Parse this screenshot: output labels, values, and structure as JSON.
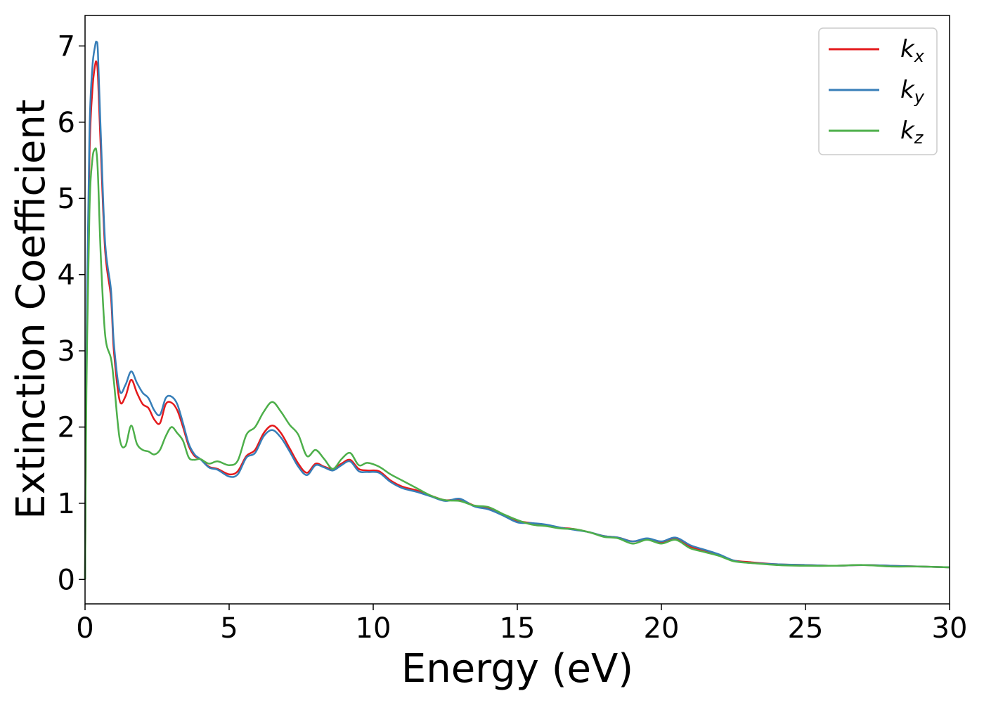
{
  "chart_data": {
    "type": "line",
    "xlabel": "Energy (eV)",
    "ylabel": "Extinction Coefficient",
    "xlim": [
      0,
      30
    ],
    "ylim": [
      -0.32,
      7.4
    ],
    "xticks": [
      "0",
      "5",
      "10",
      "15",
      "20",
      "25",
      "30"
    ],
    "yticks": [
      "0",
      "1",
      "2",
      "3",
      "4",
      "5",
      "6",
      "7"
    ],
    "grid": false,
    "legend": "top-right",
    "series": [
      {
        "name": "k",
        "sub": "x",
        "color": "#e41a1c",
        "x": [
          0,
          0.05,
          0.15,
          0.25,
          0.35,
          0.4,
          0.45,
          0.55,
          0.7,
          0.9,
          1.0,
          1.2,
          1.4,
          1.6,
          1.8,
          2.0,
          2.2,
          2.4,
          2.6,
          2.8,
          3.0,
          3.2,
          3.4,
          3.6,
          3.8,
          4.0,
          4.3,
          4.6,
          5.0,
          5.3,
          5.6,
          5.9,
          6.2,
          6.5,
          6.8,
          7.1,
          7.4,
          7.7,
          8.0,
          8.3,
          8.6,
          8.9,
          9.2,
          9.5,
          9.8,
          10.2,
          10.6,
          11.0,
          11.5,
          12.0,
          12.5,
          13.0,
          13.5,
          14.0,
          14.5,
          15.0,
          15.5,
          16.0,
          16.5,
          17.0,
          17.5,
          18.0,
          18.5,
          19.0,
          19.5,
          20.0,
          20.5,
          21.0,
          21.5,
          22.0,
          22.5,
          23.0,
          24.0,
          25.0,
          26.0,
          27.0,
          28.0,
          29.0,
          30.0
        ],
        "values": [
          0,
          2.8,
          5.5,
          6.4,
          6.75,
          6.78,
          6.6,
          5.6,
          4.3,
          3.7,
          3.0,
          2.35,
          2.4,
          2.62,
          2.45,
          2.3,
          2.25,
          2.1,
          2.05,
          2.3,
          2.32,
          2.22,
          2.0,
          1.75,
          1.62,
          1.58,
          1.48,
          1.45,
          1.38,
          1.42,
          1.62,
          1.7,
          1.92,
          2.02,
          1.92,
          1.72,
          1.52,
          1.4,
          1.52,
          1.48,
          1.45,
          1.52,
          1.57,
          1.45,
          1.43,
          1.42,
          1.3,
          1.22,
          1.17,
          1.1,
          1.04,
          1.05,
          0.97,
          0.93,
          0.85,
          0.77,
          0.74,
          0.71,
          0.68,
          0.66,
          0.62,
          0.57,
          0.55,
          0.5,
          0.53,
          0.49,
          0.53,
          0.43,
          0.38,
          0.32,
          0.25,
          0.23,
          0.2,
          0.19,
          0.18,
          0.19,
          0.18,
          0.17,
          0.16
        ]
      },
      {
        "name": "k",
        "sub": "y",
        "color": "#377eb8",
        "x": [
          0,
          0.05,
          0.15,
          0.25,
          0.35,
          0.4,
          0.45,
          0.55,
          0.7,
          0.9,
          1.0,
          1.2,
          1.4,
          1.6,
          1.8,
          2.0,
          2.2,
          2.4,
          2.6,
          2.8,
          3.0,
          3.2,
          3.4,
          3.6,
          3.8,
          4.0,
          4.3,
          4.6,
          5.0,
          5.3,
          5.6,
          5.9,
          6.2,
          6.5,
          6.8,
          7.1,
          7.4,
          7.7,
          8.0,
          8.3,
          8.6,
          8.9,
          9.2,
          9.5,
          9.8,
          10.2,
          10.6,
          11.0,
          11.5,
          12.0,
          12.5,
          13.0,
          13.5,
          14.0,
          14.5,
          15.0,
          15.5,
          16.0,
          16.5,
          17.0,
          17.5,
          18.0,
          18.5,
          19.0,
          19.5,
          20.0,
          20.5,
          21.0,
          21.5,
          22.0,
          22.5,
          23.0,
          24.0,
          25.0,
          26.0,
          27.0,
          28.0,
          29.0,
          30.0
        ],
        "values": [
          0,
          3.0,
          5.8,
          6.7,
          7.0,
          7.05,
          6.9,
          5.8,
          4.4,
          3.8,
          3.1,
          2.48,
          2.55,
          2.73,
          2.58,
          2.45,
          2.38,
          2.22,
          2.16,
          2.38,
          2.4,
          2.3,
          2.05,
          1.78,
          1.64,
          1.58,
          1.47,
          1.44,
          1.35,
          1.38,
          1.6,
          1.66,
          1.88,
          1.96,
          1.86,
          1.68,
          1.48,
          1.37,
          1.5,
          1.47,
          1.43,
          1.5,
          1.55,
          1.42,
          1.41,
          1.4,
          1.28,
          1.2,
          1.15,
          1.09,
          1.03,
          1.06,
          0.96,
          0.92,
          0.84,
          0.75,
          0.74,
          0.72,
          0.68,
          0.65,
          0.62,
          0.57,
          0.55,
          0.5,
          0.54,
          0.5,
          0.55,
          0.45,
          0.39,
          0.33,
          0.25,
          0.22,
          0.2,
          0.19,
          0.18,
          0.19,
          0.18,
          0.17,
          0.16
        ]
      },
      {
        "name": "k",
        "sub": "z",
        "color": "#4daf4a",
        "x": [
          0,
          0.05,
          0.15,
          0.25,
          0.35,
          0.4,
          0.45,
          0.55,
          0.7,
          0.9,
          1.0,
          1.2,
          1.4,
          1.6,
          1.8,
          2.0,
          2.2,
          2.4,
          2.6,
          2.8,
          3.0,
          3.2,
          3.4,
          3.6,
          3.8,
          4.0,
          4.3,
          4.6,
          5.0,
          5.3,
          5.6,
          5.9,
          6.2,
          6.5,
          6.8,
          7.1,
          7.4,
          7.7,
          8.0,
          8.3,
          8.6,
          8.9,
          9.2,
          9.5,
          9.8,
          10.2,
          10.6,
          11.0,
          11.5,
          12.0,
          12.5,
          13.0,
          13.5,
          14.0,
          14.5,
          15.0,
          15.5,
          16.0,
          16.5,
          17.0,
          17.5,
          18.0,
          18.5,
          19.0,
          19.5,
          20.0,
          20.5,
          21.0,
          21.5,
          22.0,
          22.5,
          23.0,
          24.0,
          25.0,
          26.0,
          27.0,
          28.0,
          29.0,
          30.0
        ],
        "values": [
          0,
          2.5,
          4.8,
          5.5,
          5.65,
          5.6,
          5.3,
          4.2,
          3.2,
          2.9,
          2.6,
          1.85,
          1.75,
          2.02,
          1.78,
          1.7,
          1.68,
          1.64,
          1.7,
          1.88,
          2.0,
          1.92,
          1.82,
          1.6,
          1.57,
          1.58,
          1.52,
          1.55,
          1.5,
          1.56,
          1.9,
          2.0,
          2.2,
          2.33,
          2.2,
          2.03,
          1.9,
          1.62,
          1.7,
          1.58,
          1.45,
          1.58,
          1.66,
          1.5,
          1.53,
          1.48,
          1.38,
          1.3,
          1.2,
          1.1,
          1.04,
          1.03,
          0.97,
          0.95,
          0.86,
          0.78,
          0.72,
          0.7,
          0.67,
          0.66,
          0.62,
          0.56,
          0.54,
          0.47,
          0.52,
          0.47,
          0.52,
          0.41,
          0.36,
          0.31,
          0.24,
          0.22,
          0.19,
          0.18,
          0.18,
          0.19,
          0.17,
          0.17,
          0.16
        ]
      }
    ]
  }
}
